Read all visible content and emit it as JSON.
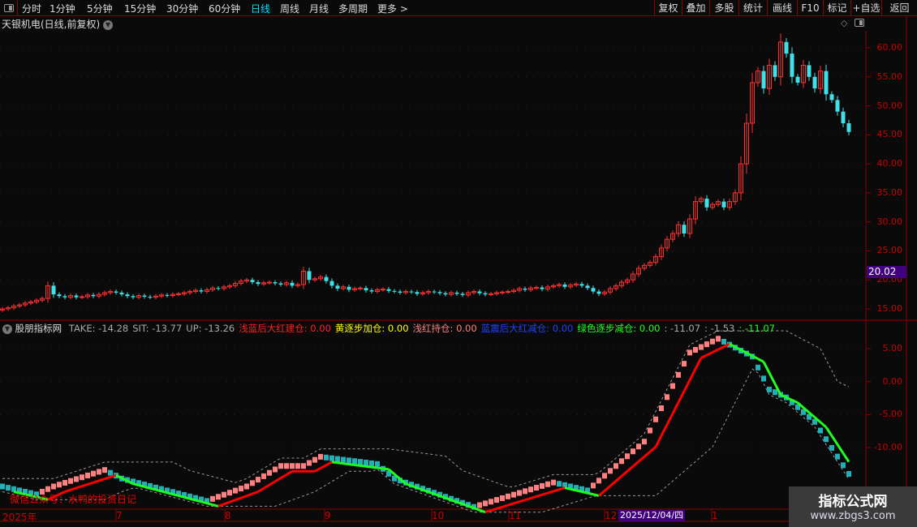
{
  "toolbar": {
    "periods": [
      "分时",
      "1分钟",
      "5分钟",
      "15分钟",
      "30分钟",
      "60分钟",
      "日线",
      "周线",
      "月线",
      "多周期",
      "更多 >"
    ],
    "active_period": "日线",
    "buttons": [
      "复权",
      "叠加",
      "多股",
      "统计",
      "画线",
      "F10",
      "标记",
      "+自选",
      "返回"
    ]
  },
  "chart": {
    "title": "天银机电(日线,前复权)",
    "y_ticks": [
      "60.00",
      "55.00",
      "50.00",
      "45.00",
      "40.00",
      "35.00",
      "30.00",
      "25.00",
      "20.00",
      "15.00"
    ],
    "y_tick_values": [
      60,
      55,
      50,
      45,
      40,
      35,
      30,
      25,
      20,
      15
    ],
    "current_price": "20.02",
    "up_color": "#ff3030",
    "down_color": "#40e0e8",
    "closes": [
      15.0,
      15.2,
      15.5,
      15.7,
      16.0,
      16.2,
      16.5,
      16.8,
      19.0,
      17.5,
      17.2,
      17.0,
      17.3,
      17.0,
      17.1,
      17.4,
      17.2,
      17.5,
      17.8,
      18.0,
      17.8,
      17.5,
      17.2,
      17.0,
      17.3,
      17.1,
      17.0,
      17.2,
      17.4,
      17.3,
      17.5,
      17.6,
      17.8,
      18.0,
      18.2,
      18.0,
      18.3,
      18.6,
      18.5,
      18.8,
      19.0,
      19.4,
      19.8,
      20.0,
      19.6,
      19.3,
      19.5,
      19.6,
      19.4,
      19.2,
      19.5,
      19.0,
      19.2,
      21.5,
      20.0,
      20.2,
      20.5,
      19.8,
      19.0,
      18.5,
      18.8,
      18.3,
      18.5,
      18.6,
      18.2,
      18.0,
      18.3,
      18.4,
      18.1,
      18.0,
      17.8,
      18.0,
      17.9,
      17.6,
      17.8,
      18.0,
      17.9,
      17.7,
      17.5,
      17.8,
      17.6,
      17.4,
      17.8,
      18.0,
      17.7,
      17.5,
      17.6,
      17.8,
      17.9,
      18.0,
      18.2,
      18.5,
      18.3,
      18.6,
      18.7,
      18.4,
      18.8,
      19.0,
      19.2,
      18.8,
      19.1,
      19.3,
      19.0,
      18.6,
      18.0,
      17.6,
      17.9,
      18.5,
      19.0,
      19.6,
      20.0,
      21.0,
      22.0,
      22.5,
      23.0,
      24.0,
      25.5,
      27.0,
      28.0,
      29.5,
      28.0,
      30.5,
      33.5,
      34.0,
      32.5,
      33.0,
      33.5,
      32.5,
      33.5,
      35.0,
      40.0,
      47.0,
      54.0,
      56.0,
      53.0,
      57.0,
      55.0,
      61.0,
      59.0,
      55.0,
      54.0,
      57.0,
      55.0,
      53.0,
      56.0,
      52.0,
      51.0,
      49.0,
      47.0,
      45.5
    ]
  },
  "indicator": {
    "name": "股朋指标网",
    "values": [
      {
        "label": "TAKE: -14.28",
        "color": "#aaaaaa"
      },
      {
        "label": "SIT: -13.77",
        "color": "#aaaaaa"
      },
      {
        "label": "UP: -13.26",
        "color": "#aaaaaa"
      },
      {
        "label": "浅蓝后大红建仓: 0.00",
        "color": "#ff2020"
      },
      {
        "label": "黄逐步加仓: 0.00",
        "color": "#ffff00"
      },
      {
        "label": "浅红持仓: 0.00",
        "color": "#ff8080"
      },
      {
        "label": "蓝震后大红减仓: 0.00",
        "color": "#2040ff"
      },
      {
        "label": "绿色逐步减仓: 0.00",
        "color": "#20ff20"
      },
      {
        "label": ": -11.07",
        "color": "#aaaaaa"
      },
      {
        "label": ": -1.53",
        "color": "#aaaaaa"
      },
      {
        "label": ": -11.07",
        "color": "#20ff20"
      }
    ],
    "y_ticks": [
      "5.00",
      "0.00",
      "-5.00",
      "-10.00"
    ],
    "y_tick_values": [
      5,
      0,
      -5,
      -10
    ],
    "take_keypoints": [
      [
        0,
        -15.9
      ],
      [
        6,
        -17.1
      ],
      [
        9,
        -15.9
      ],
      [
        18,
        -13.4
      ],
      [
        21,
        -14.7
      ],
      [
        36,
        -18.1
      ],
      [
        43,
        -15.9
      ],
      [
        49,
        -12.8
      ],
      [
        53,
        -12.8
      ],
      [
        56,
        -11.4
      ],
      [
        66,
        -12.5
      ],
      [
        69,
        -14.7
      ],
      [
        83,
        -19
      ],
      [
        97,
        -15.3
      ],
      [
        103,
        -16.5
      ],
      [
        113,
        -9.1
      ],
      [
        121,
        4.4
      ],
      [
        126,
        6.5
      ],
      [
        132,
        3.8
      ],
      [
        135,
        -1.2
      ],
      [
        138,
        -2.4
      ],
      [
        143,
        -6.1
      ],
      [
        149,
        -14
      ]
    ],
    "rise_color": "#ff8080",
    "fall_color": "#20b0b8",
    "line_up_color": "#ff0000",
    "line_down_color": "#20ff20",
    "credit": "微信公众号：水鸭的投资日记"
  },
  "x_axis": {
    "labels": [
      "2025年",
      "7",
      "8",
      "9",
      "10",
      "11",
      "12",
      "1"
    ],
    "cursor_date": "2025/12/04/四"
  },
  "watermark": {
    "title": "指标公式网",
    "url": "www.zbgs3.com"
  }
}
